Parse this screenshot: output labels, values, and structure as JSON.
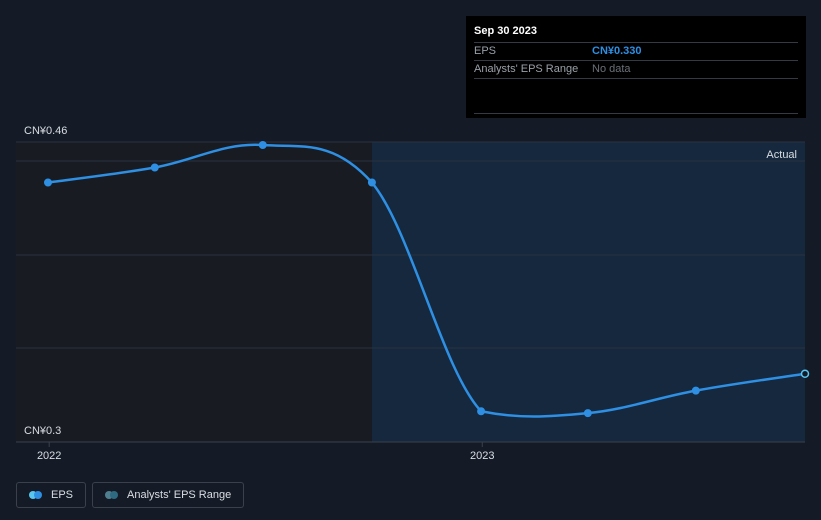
{
  "tooltip": {
    "date": "Sep 30 2023",
    "eps_label": "EPS",
    "eps_value": "CN¥0.330",
    "range_label": "Analysts' EPS Range",
    "range_value": "No data"
  },
  "legend": {
    "eps_label": "EPS",
    "range_label": "Analysts' EPS Range"
  },
  "colors": {
    "eps_line": "#2e8fe3",
    "eps_dot_light": "#59c6f0",
    "range_dot_dark": "#2e6b80",
    "range_dot_light": "#4f7f8f",
    "actual_region": "#15283d",
    "past_region": "#181c22"
  },
  "chart_data": {
    "type": "line",
    "y_top_label": "CN¥0.46",
    "y_bottom_label": "CN¥0.3",
    "ylim": [
      0.3,
      0.46
    ],
    "x_tick_labels": [
      "2022",
      "2023"
    ],
    "region_label": "Actual",
    "series": [
      {
        "name": "EPS",
        "x": [
          "2021-12-31",
          "2022-03-31",
          "2022-06-30",
          "2022-09-30",
          "2022-12-31",
          "2023-03-31",
          "2023-06-30",
          "2023-09-30"
        ],
        "values": [
          0.432,
          0.44,
          0.452,
          0.432,
          0.31,
          0.309,
          0.321,
          0.33
        ]
      }
    ]
  }
}
